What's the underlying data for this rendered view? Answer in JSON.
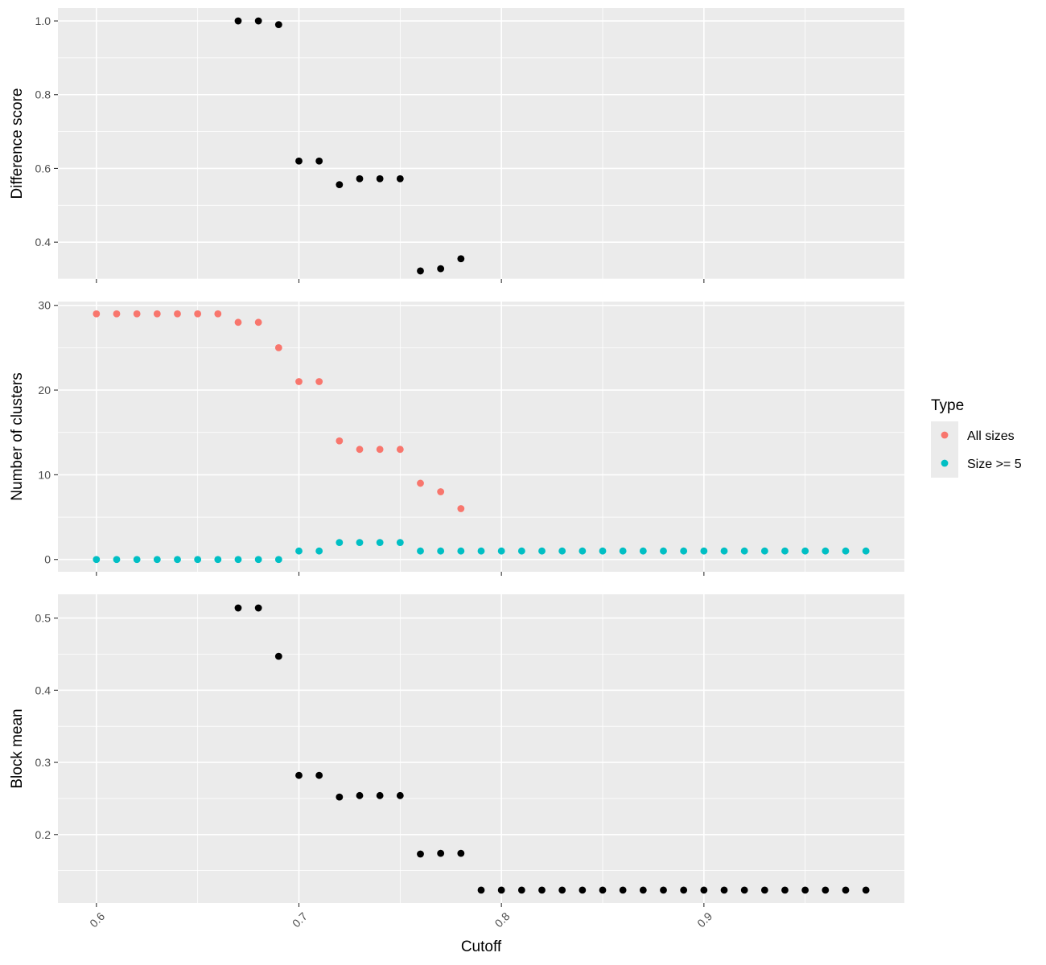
{
  "chart_data": {
    "type": "scatter",
    "xlabel": "Cutoff",
    "x_ticks": [
      0.6,
      0.7,
      0.8,
      0.9
    ],
    "x_tick_labels": [
      "0.6",
      "0.7",
      "0.8",
      "0.9"
    ],
    "xlim": [
      0.581,
      0.999
    ],
    "grid": true,
    "legend": {
      "title": "Type",
      "placement": "right",
      "entries": [
        {
          "label": "All sizes",
          "color": "#F8766D"
        },
        {
          "label": "Size >= 5",
          "color": "#00BFC4"
        }
      ]
    },
    "panels": [
      {
        "ylabel": "Difference score",
        "ylim": [
          0.3,
          1.035
        ],
        "y_ticks": [
          0.4,
          0.6,
          0.8,
          1.0
        ],
        "y_tick_labels": [
          "0.4",
          "0.6",
          "0.8",
          "1.0"
        ],
        "series": [
          {
            "color": "#000000",
            "x": [
              0.67,
              0.68,
              0.69,
              0.7,
              0.71,
              0.72,
              0.73,
              0.74,
              0.75,
              0.76,
              0.77,
              0.78
            ],
            "y": [
              1.0,
              1.0,
              0.99,
              0.62,
              0.62,
              0.556,
              0.572,
              0.572,
              0.572,
              0.322,
              0.328,
              0.355
            ]
          }
        ]
      },
      {
        "ylabel": "Number of clusters",
        "ylim": [
          -1.45,
          30.45
        ],
        "y_ticks": [
          0,
          10,
          20,
          30
        ],
        "y_tick_labels": [
          "0",
          "10",
          "20",
          "30"
        ],
        "series": [
          {
            "name": "All sizes",
            "color": "#F8766D",
            "x": [
              0.6,
              0.61,
              0.62,
              0.63,
              0.64,
              0.65,
              0.66,
              0.67,
              0.68,
              0.69,
              0.7,
              0.71,
              0.72,
              0.73,
              0.74,
              0.75,
              0.76,
              0.77,
              0.78
            ],
            "y": [
              29,
              29,
              29,
              29,
              29,
              29,
              29,
              28,
              28,
              25,
              21,
              21,
              14,
              13,
              13,
              13,
              9,
              8,
              6
            ]
          },
          {
            "name": "Size >= 5",
            "color": "#00BFC4",
            "x": [
              0.6,
              0.61,
              0.62,
              0.63,
              0.64,
              0.65,
              0.66,
              0.67,
              0.68,
              0.69,
              0.7,
              0.71,
              0.72,
              0.73,
              0.74,
              0.75,
              0.76,
              0.77,
              0.78,
              0.79,
              0.8,
              0.81,
              0.82,
              0.83,
              0.84,
              0.85,
              0.86,
              0.87,
              0.88,
              0.89,
              0.9,
              0.91,
              0.92,
              0.93,
              0.94,
              0.95,
              0.96,
              0.97,
              0.98
            ],
            "y": [
              0,
              0,
              0,
              0,
              0,
              0,
              0,
              0,
              0,
              0,
              1,
              1,
              2,
              2,
              2,
              2,
              1,
              1,
              1,
              1,
              1,
              1,
              1,
              1,
              1,
              1,
              1,
              1,
              1,
              1,
              1,
              1,
              1,
              1,
              1,
              1,
              1,
              1,
              1
            ]
          }
        ]
      },
      {
        "ylabel": "Block mean",
        "ylim": [
          0.105,
          0.533
        ],
        "y_ticks": [
          0.2,
          0.3,
          0.4,
          0.5
        ],
        "y_tick_labels": [
          "0.2",
          "0.3",
          "0.4",
          "0.5"
        ],
        "series": [
          {
            "color": "#000000",
            "x": [
              0.67,
              0.68,
              0.69,
              0.7,
              0.71,
              0.72,
              0.73,
              0.74,
              0.75,
              0.76,
              0.77,
              0.78,
              0.79,
              0.8,
              0.81,
              0.82,
              0.83,
              0.84,
              0.85,
              0.86,
              0.87,
              0.88,
              0.89,
              0.9,
              0.91,
              0.92,
              0.93,
              0.94,
              0.95,
              0.96,
              0.97,
              0.98
            ],
            "y": [
              0.514,
              0.514,
              0.447,
              0.282,
              0.282,
              0.252,
              0.254,
              0.254,
              0.254,
              0.173,
              0.174,
              0.174,
              0.123,
              0.123,
              0.123,
              0.123,
              0.123,
              0.123,
              0.123,
              0.123,
              0.123,
              0.123,
              0.123,
              0.123,
              0.123,
              0.123,
              0.123,
              0.123,
              0.123,
              0.123,
              0.123,
              0.123
            ]
          }
        ]
      }
    ]
  }
}
